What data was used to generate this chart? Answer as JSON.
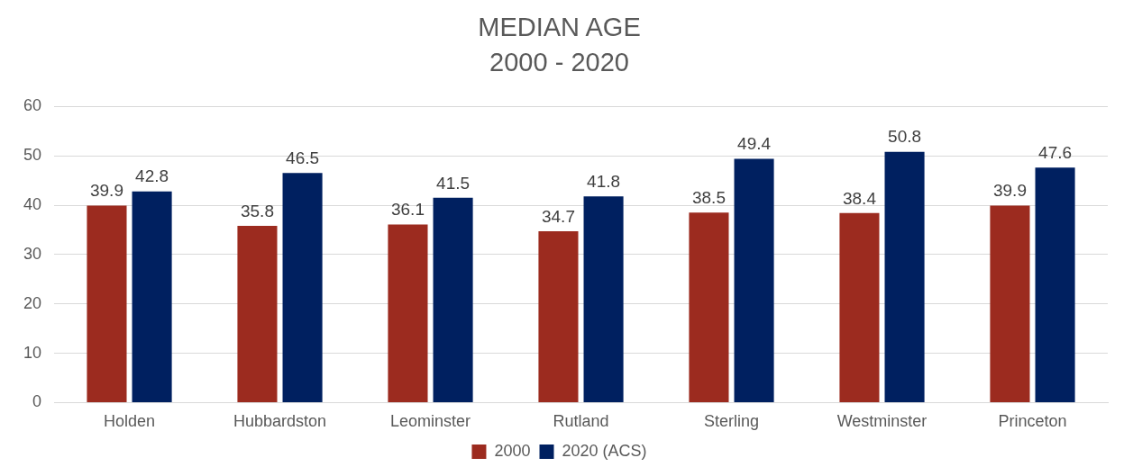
{
  "chart_data": {
    "type": "bar",
    "title": "MEDIAN AGE\n2000 - 2020",
    "categories": [
      "Holden",
      "Hubbardston",
      "Leominster",
      "Rutland",
      "Sterling",
      "Westminster",
      "Princeton"
    ],
    "series": [
      {
        "name": "2000",
        "color": "#9c2b1f",
        "values": [
          39.9,
          35.8,
          36.1,
          34.7,
          38.5,
          38.4,
          39.9
        ]
      },
      {
        "name": "2020 (ACS)",
        "color": "#002060",
        "values": [
          42.8,
          46.5,
          41.5,
          41.8,
          49.4,
          50.8,
          47.6
        ]
      }
    ],
    "ylim": [
      0,
      60
    ],
    "yticks": [
      0,
      10,
      20,
      30,
      40,
      50,
      60
    ],
    "grid": "y",
    "legend": "bottom",
    "data_labels": true
  }
}
